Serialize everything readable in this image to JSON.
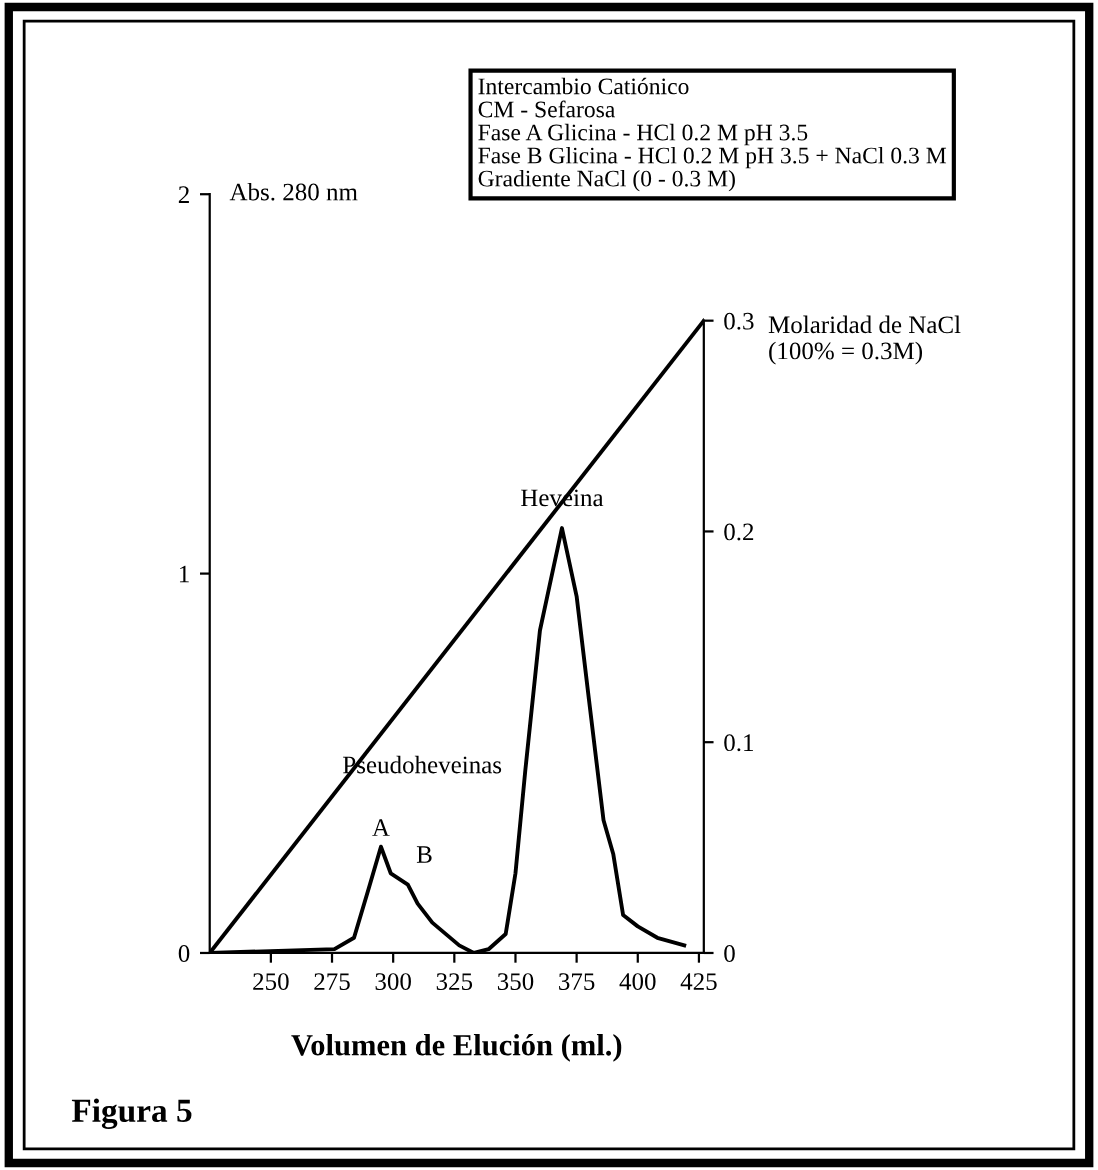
{
  "chart_data": {
    "type": "line",
    "xlabel": "Volumen de Elución (ml.)",
    "ylabel": "Abs. 280 nm",
    "y2label": "Molaridad de NaCl\n(100% = 0.3M)",
    "xlim": [
      225,
      427
    ],
    "xticks": [
      250,
      275,
      300,
      325,
      350,
      375,
      400,
      425
    ],
    "ylim": [
      0,
      2
    ],
    "yticks": [
      0,
      1,
      2
    ],
    "y2lim": [
      0,
      0.36
    ],
    "y2ticks": [
      0,
      0.1,
      0.2,
      0.3
    ],
    "grid": false,
    "legend": false,
    "marker": "none",
    "line_style": "solid",
    "series": [
      {
        "color": "#000000",
        "x": [
          225,
          276,
          284,
          290,
          295,
          299,
          306,
          310,
          316,
          327,
          333,
          339,
          346,
          350,
          354,
          360,
          363,
          369,
          375,
          380,
          386,
          390,
          394,
          400,
          408,
          419
        ],
        "values": [
          0.0,
          0.01,
          0.04,
          0.17,
          0.28,
          0.21,
          0.18,
          0.13,
          0.08,
          0.02,
          0.0,
          0.01,
          0.05,
          0.21,
          0.48,
          0.85,
          0.94,
          1.12,
          0.94,
          0.67,
          0.35,
          0.26,
          0.1,
          0.07,
          0.04,
          0.02
        ]
      },
      {
        "color": "#000000",
        "axis": "y2",
        "x": [
          225,
          427
        ],
        "values": [
          0,
          0.3
        ]
      }
    ],
    "annotations": [
      "Pseudoheveinas",
      {
        "text": "A",
        "x": 295,
        "y": 0.28
      },
      {
        "text": "B",
        "x": 306,
        "y": 0.18
      },
      {
        "text": "Heveina",
        "x": 369,
        "y": 1.12
      },
      "Intercambio Catiónico\nCM - Sefarosa\nFase A Glicina - HCl 0.2 M pH 3.5\nFase B Glicina - HCl 0.2 M pH 3.5 + NaCl 0.3 M\nGradiente NaCl (0 - 0.3 M)",
      "Figura 5"
    ]
  }
}
